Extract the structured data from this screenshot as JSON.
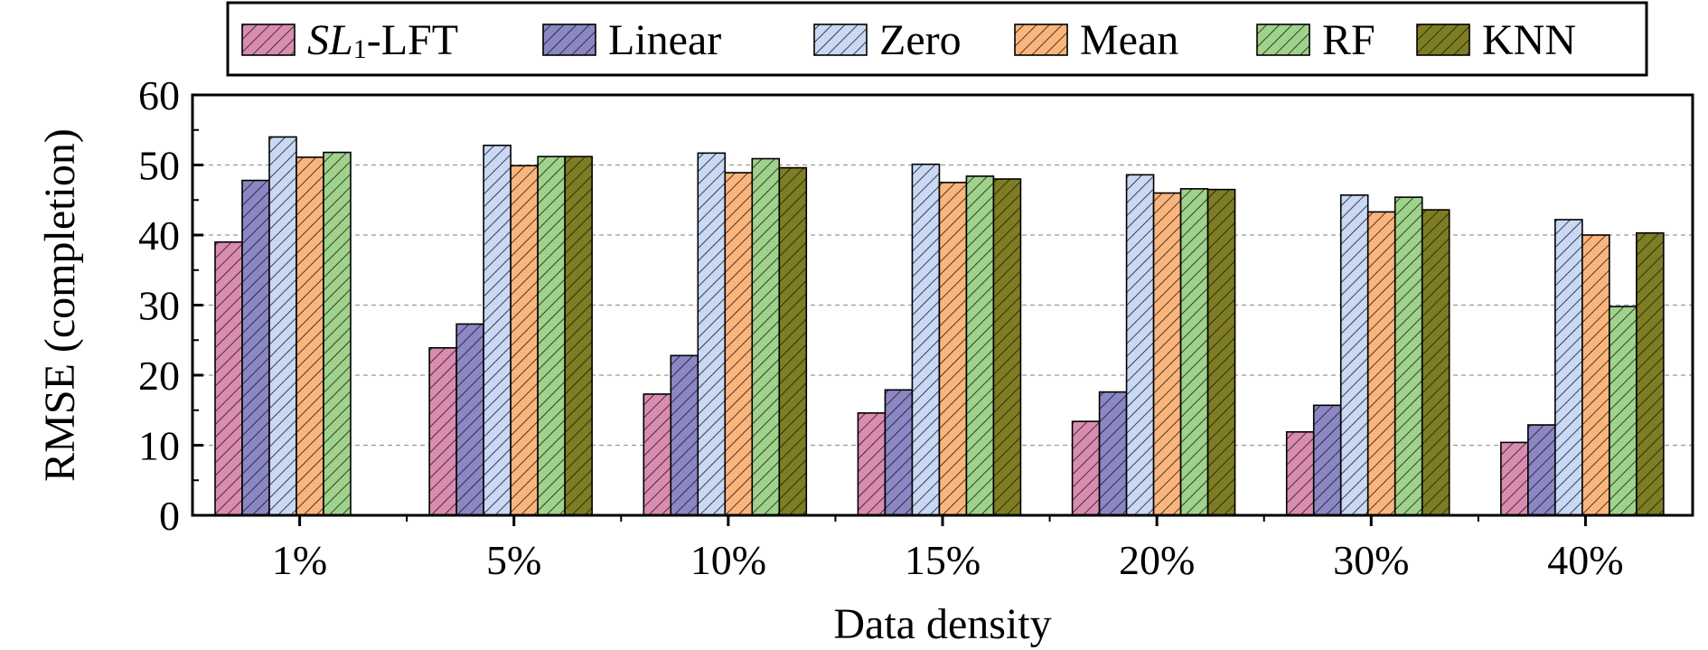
{
  "chart_data": {
    "type": "bar",
    "xlabel": "Data density",
    "ylabel": "RMSE (completion)",
    "ylim": [
      0,
      60
    ],
    "yticks": [
      0,
      10,
      20,
      30,
      40,
      50,
      60
    ],
    "grid": "horizontal dashed",
    "legend_position": "top",
    "categories": [
      "1%",
      "5%",
      "10%",
      "15%",
      "20%",
      "30%",
      "40%"
    ],
    "series": [
      {
        "name": "SL1-LFT",
        "name_parts": {
          "italic": "SL",
          "subscript": "1",
          "rest": "-LFT"
        },
        "color": "#d98cb0",
        "values": [
          39.0,
          23.9,
          17.3,
          14.6,
          13.4,
          11.9,
          10.4
        ]
      },
      {
        "name": "Linear",
        "color": "#8b86c4",
        "values": [
          47.8,
          27.3,
          22.8,
          17.9,
          17.6,
          15.7,
          12.9
        ]
      },
      {
        "name": "Zero",
        "color": "#c8d8f5",
        "values": [
          54.0,
          52.8,
          51.7,
          50.1,
          48.6,
          45.7,
          42.2
        ]
      },
      {
        "name": "Mean",
        "color": "#fbb57c",
        "values": [
          51.1,
          49.9,
          48.9,
          47.5,
          46.0,
          43.3,
          40.0
        ]
      },
      {
        "name": "RF",
        "color": "#9fd28a",
        "values": [
          51.8,
          51.2,
          50.9,
          48.4,
          46.6,
          45.4,
          29.8
        ]
      },
      {
        "name": "KNN",
        "color": "#7e7d22",
        "values": [
          null,
          51.2,
          49.6,
          48.0,
          46.5,
          43.6,
          40.3
        ]
      }
    ]
  }
}
